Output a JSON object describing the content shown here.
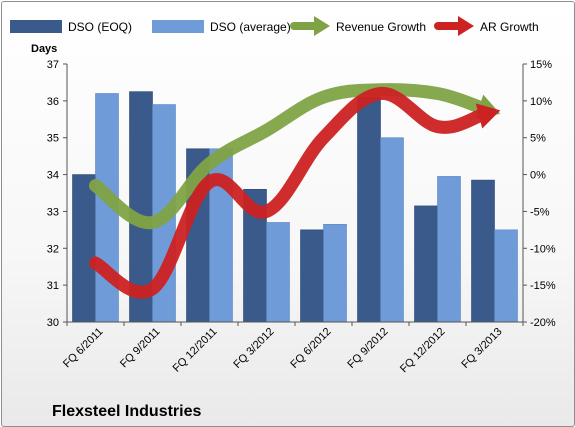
{
  "chart_data": {
    "type": "bar",
    "categories": [
      "FQ 6/2011",
      "FQ 9/2011",
      "FQ 12/2011",
      "FQ 3/2012",
      "FQ 6/2012",
      "FQ 9/2012",
      "FQ 12/2012",
      "FQ 3/2013"
    ],
    "series": [
      {
        "name": "DSO (EOQ)",
        "type": "bar",
        "axis": "left",
        "color": "#3a5a8c",
        "values": [
          34.0,
          36.25,
          34.7,
          33.6,
          32.5,
          36.1,
          33.15,
          33.85
        ]
      },
      {
        "name": "DSO (average)",
        "type": "bar",
        "axis": "left",
        "color": "#6f9bd8",
        "values": [
          36.2,
          35.9,
          34.7,
          32.7,
          32.65,
          35.0,
          33.95,
          32.5
        ]
      },
      {
        "name": "Revenue Growth",
        "type": "line",
        "axis": "right",
        "color": "#7fa344",
        "values": [
          -1.5,
          -6.5,
          1.5,
          6.0,
          10.5,
          11.5,
          11.0,
          8.5
        ]
      },
      {
        "name": "AR Growth",
        "type": "line",
        "axis": "right",
        "color": "#cc2222",
        "values": [
          -12.0,
          -15.5,
          -1.0,
          -5.0,
          5.0,
          11.0,
          6.5,
          8.5
        ]
      }
    ],
    "title": "Flexsteel Industries",
    "ylabel": "Days",
    "ylim": [
      30,
      37
    ],
    "yticks": [
      "30",
      "31",
      "32",
      "33",
      "34",
      "35",
      "36",
      "37"
    ],
    "y2lim": [
      -20,
      15
    ],
    "y2ticks": [
      "-20%",
      "-15%",
      "-10%",
      "-5%",
      "0%",
      "5%",
      "10%",
      "15%"
    ],
    "legend": "top",
    "grid": false
  }
}
